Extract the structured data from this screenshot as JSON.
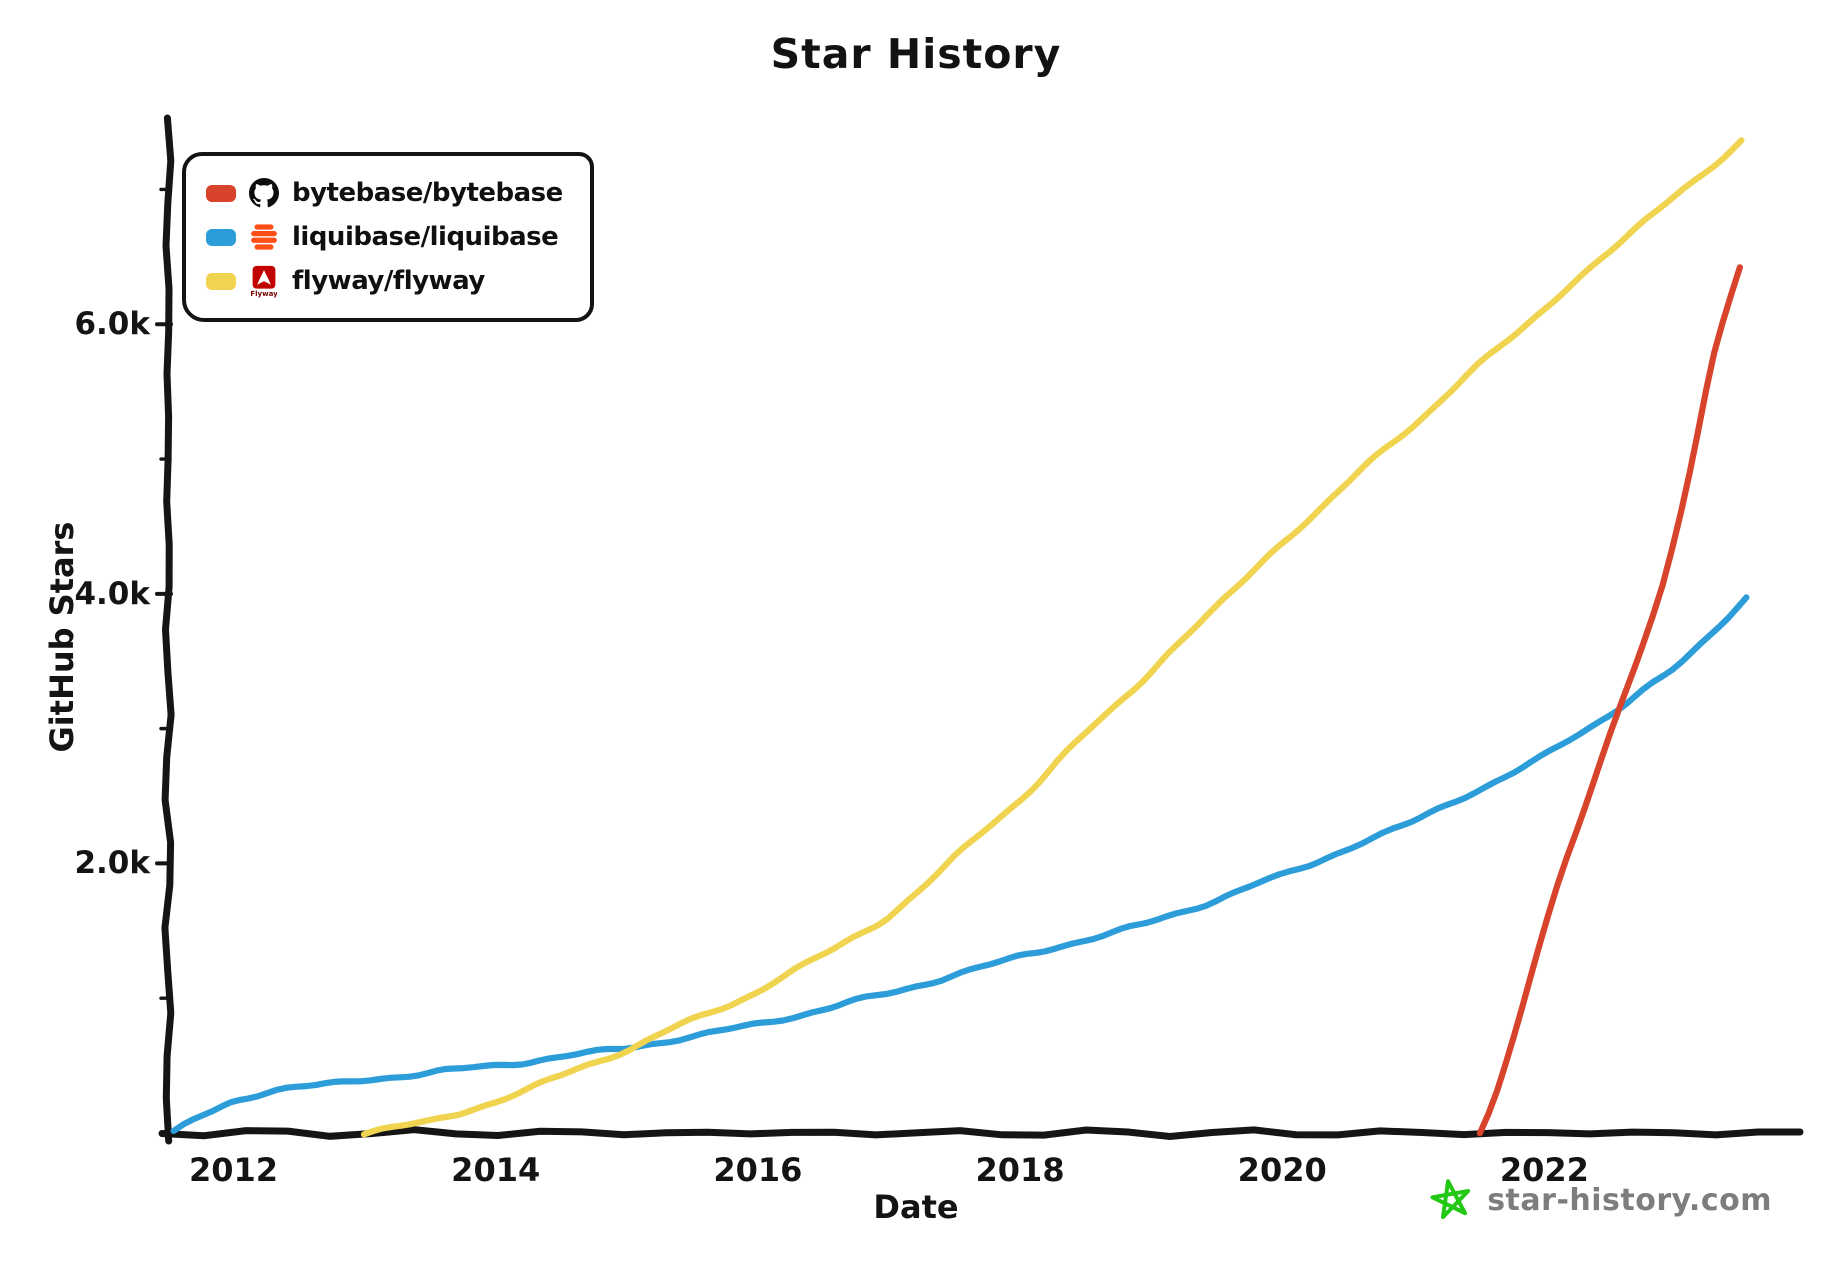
{
  "title": "Star History",
  "chart_data": {
    "type": "line",
    "title": "Star History",
    "xlabel": "Date",
    "ylabel": "GitHub Stars",
    "x_ticks": [
      "2012",
      "2014",
      "2016",
      "2018",
      "2020",
      "2022"
    ],
    "x_tick_values": [
      2012,
      2014,
      2016,
      2018,
      2020,
      2022
    ],
    "y_ticks": [
      {
        "label": "2.0k",
        "value": 2000
      },
      {
        "label": "4.0k",
        "value": 4000
      },
      {
        "label": "6.0k",
        "value": 6000
      }
    ],
    "y_minor_tick_values": [
      1000,
      3000,
      5000,
      7000
    ],
    "xlim": [
      2011.5,
      2023.95
    ],
    "ylim": [
      0,
      7530
    ],
    "grid": false,
    "legend_position": "top-left",
    "series": [
      {
        "name": "bytebase/bytebase",
        "color": "#d8432c",
        "icon": "github-icon",
        "points": [
          [
            2021.5,
            0
          ],
          [
            2021.62,
            260
          ],
          [
            2021.8,
            820
          ],
          [
            2022.0,
            1500
          ],
          [
            2022.15,
            2000
          ],
          [
            2022.5,
            2950
          ],
          [
            2022.75,
            3600
          ],
          [
            2022.9,
            4050
          ],
          [
            2023.1,
            4900
          ],
          [
            2023.3,
            5800
          ],
          [
            2023.5,
            6420
          ]
        ]
      },
      {
        "name": "liquibase/liquibase",
        "color": "#2d9dda",
        "icon": "liquibase-icon",
        "points": [
          [
            2011.55,
            0
          ],
          [
            2011.7,
            100
          ],
          [
            2012.0,
            240
          ],
          [
            2012.35,
            330
          ],
          [
            2012.8,
            365
          ],
          [
            2013.0,
            395
          ],
          [
            2014.0,
            500
          ],
          [
            2015.0,
            630
          ],
          [
            2016.0,
            805
          ],
          [
            2017.0,
            1035
          ],
          [
            2018.0,
            1310
          ],
          [
            2019.0,
            1560
          ],
          [
            2020.0,
            1910
          ],
          [
            2021.0,
            2310
          ],
          [
            2022.0,
            2790
          ],
          [
            2023.0,
            3440
          ],
          [
            2023.55,
            3980
          ]
        ]
      },
      {
        "name": "flyway/flyway",
        "color": "#f0d450",
        "icon": "flyway-icon",
        "points": [
          [
            2013.0,
            0
          ],
          [
            2013.5,
            85
          ],
          [
            2014.0,
            230
          ],
          [
            2015.0,
            620
          ],
          [
            2016.0,
            1050
          ],
          [
            2017.0,
            1600
          ],
          [
            2018.0,
            2480
          ],
          [
            2019.0,
            3430
          ],
          [
            2020.0,
            4380
          ],
          [
            2021.0,
            5260
          ],
          [
            2022.0,
            6120
          ],
          [
            2023.0,
            6960
          ],
          [
            2023.5,
            7350
          ]
        ]
      }
    ]
  },
  "watermark": {
    "text": "star-history.com",
    "color": "#7d7d7d",
    "star_color": "#22c814"
  },
  "colors": {
    "axis": "#151515",
    "background": "#ffffff"
  }
}
